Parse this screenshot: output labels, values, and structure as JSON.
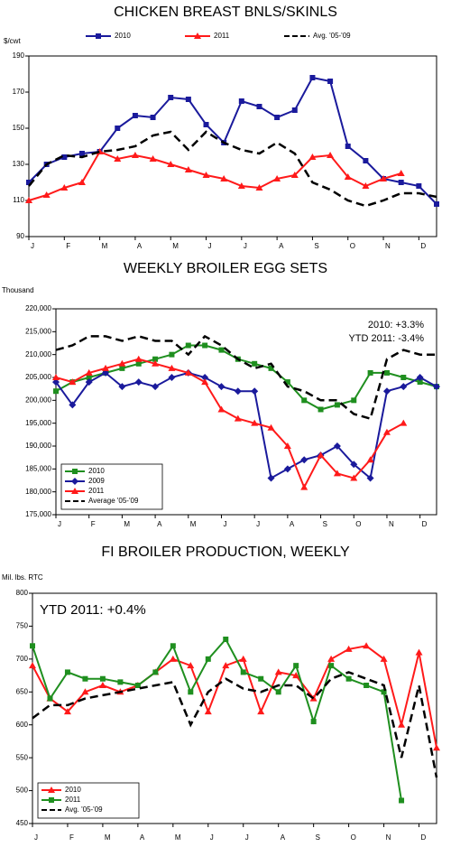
{
  "chart_data": [
    {
      "type": "line",
      "title": "CHICKEN BREAST BNLS/SKINLS",
      "ylabel": "$/cwt",
      "legend": "top",
      "categories": [
        "J",
        null,
        "F",
        null,
        "M",
        null,
        "A",
        null,
        "M",
        null,
        "J",
        null,
        "J",
        null,
        "A",
        null,
        "S",
        null,
        "O",
        null,
        "N",
        null,
        "D",
        null
      ],
      "ylim": [
        90,
        190
      ],
      "yticks": [
        90,
        110,
        130,
        150,
        170,
        190
      ],
      "grid": false,
      "series": [
        {
          "name": "2010",
          "color": "#1a1a9c",
          "marker": "square",
          "dashed": false,
          "values": [
            120,
            130,
            134,
            136,
            137,
            150,
            157,
            156,
            167,
            166,
            152,
            142,
            165,
            162,
            156,
            160,
            178,
            176,
            140,
            132,
            122,
            120,
            118,
            108
          ]
        },
        {
          "name": "2011",
          "color": "#ff1a1a",
          "marker": "triangle",
          "dashed": false,
          "values": [
            110,
            113,
            117,
            120,
            137,
            133,
            135,
            133,
            130,
            127,
            124,
            122,
            118,
            117,
            122,
            124,
            134,
            135,
            123,
            118,
            122,
            125,
            null,
            null
          ]
        },
        {
          "name": "Avg. '05-'09",
          "color": "#000000",
          "marker": "none",
          "dashed": true,
          "values": [
            118,
            130,
            135,
            134,
            137,
            138,
            140,
            146,
            148,
            138,
            148,
            142,
            138,
            136,
            142,
            136,
            120,
            116,
            110,
            107,
            110,
            114,
            114,
            112
          ]
        }
      ]
    },
    {
      "type": "line",
      "title": "WEEKLY BROILER EGG SETS",
      "ylabel": "Thousand",
      "legend": "bottom-left",
      "annotations": [
        "2010:  +3.3%",
        "YTD 2011:  -3.4%"
      ],
      "categories": [
        "J",
        null,
        "F",
        null,
        "M",
        null,
        "A",
        null,
        "M",
        null,
        "J",
        null,
        "J",
        null,
        "A",
        null,
        "S",
        null,
        "O",
        null,
        "N",
        null,
        "D",
        null
      ],
      "ylim": [
        175000,
        220000
      ],
      "yticks": [
        {
          "value": 175000,
          "label": "175,000"
        },
        {
          "value": 180000,
          "label": "180,000"
        },
        {
          "value": 185000,
          "label": "185,000"
        },
        {
          "value": 190000,
          "label": "190,000"
        },
        {
          "value": 195000,
          "label": "195,000"
        },
        {
          "value": 200000,
          "label": "200,000"
        },
        {
          "value": 205000,
          "label": "205,000"
        },
        {
          "value": 210000,
          "label": "210,000"
        },
        {
          "value": 215000,
          "label": "215,000"
        },
        {
          "value": 220000,
          "label": "220,000"
        }
      ],
      "grid": false,
      "series": [
        {
          "name": "2010",
          "color": "#1f8f1f",
          "marker": "square",
          "dashed": false,
          "values": [
            202000,
            204000,
            205000,
            206000,
            207000,
            208000,
            209000,
            210000,
            212000,
            212000,
            211000,
            209000,
            208000,
            207000,
            204000,
            200000,
            198000,
            199000,
            200000,
            206000,
            206000,
            205000,
            204000,
            203000
          ]
        },
        {
          "name": "2009",
          "color": "#1a1a9c",
          "marker": "diamond",
          "dashed": false,
          "values": [
            204000,
            199000,
            204000,
            206000,
            203000,
            204000,
            203000,
            205000,
            206000,
            205000,
            203000,
            202000,
            202000,
            183000,
            185000,
            187000,
            188000,
            190000,
            186000,
            183000,
            202000,
            203000,
            205000,
            203000
          ]
        },
        {
          "name": "2011",
          "color": "#ff1a1a",
          "marker": "triangle",
          "dashed": false,
          "values": [
            205000,
            204000,
            206000,
            207000,
            208000,
            209000,
            208000,
            207000,
            206000,
            204000,
            198000,
            196000,
            195000,
            194000,
            190000,
            181000,
            188000,
            184000,
            183000,
            187000,
            193000,
            195000,
            null,
            null
          ]
        },
        {
          "name": "Average '05-'09",
          "color": "#000000",
          "marker": "none",
          "dashed": true,
          "values": [
            211000,
            212000,
            214000,
            214000,
            213000,
            214000,
            213000,
            213000,
            210000,
            214000,
            212000,
            209000,
            207000,
            208000,
            203000,
            202000,
            200000,
            200000,
            197000,
            196000,
            209000,
            211000,
            210000,
            210000
          ]
        }
      ]
    },
    {
      "type": "line",
      "title": "FI BROILER PRODUCTION, WEEKLY",
      "ylabel": "Mil. lbs. RTC",
      "legend": "bottom-left",
      "annotations": [
        "YTD 2011:  +0.4%"
      ],
      "categories": [
        "J",
        null,
        "F",
        null,
        "M",
        null,
        "A",
        null,
        "M",
        null,
        "J",
        null,
        "J",
        null,
        "A",
        null,
        "S",
        null,
        "O",
        null,
        "N",
        null,
        "D",
        null
      ],
      "ylim": [
        450,
        800
      ],
      "yticks": [
        450,
        500,
        550,
        600,
        650,
        700,
        750,
        800
      ],
      "grid": false,
      "series": [
        {
          "name": "2010",
          "color": "#ff1a1a",
          "marker": "triangle",
          "dashed": false,
          "values": [
            690,
            640,
            620,
            650,
            660,
            650,
            660,
            680,
            700,
            690,
            620,
            690,
            700,
            620,
            680,
            675,
            640,
            700,
            715,
            720,
            700,
            600,
            710,
            565
          ]
        },
        {
          "name": "2011",
          "color": "#1f8f1f",
          "marker": "square",
          "dashed": false,
          "values": [
            720,
            640,
            680,
            670,
            670,
            665,
            660,
            680,
            720,
            650,
            700,
            730,
            680,
            670,
            650,
            690,
            605,
            690,
            670,
            660,
            650,
            485,
            null,
            null
          ]
        },
        {
          "name": "Avg. '05-'09",
          "color": "#000000",
          "marker": "none",
          "dashed": true,
          "values": [
            610,
            630,
            630,
            640,
            645,
            650,
            655,
            660,
            665,
            600,
            650,
            670,
            655,
            650,
            660,
            660,
            640,
            670,
            680,
            670,
            660,
            550,
            660,
            520
          ]
        }
      ]
    }
  ]
}
